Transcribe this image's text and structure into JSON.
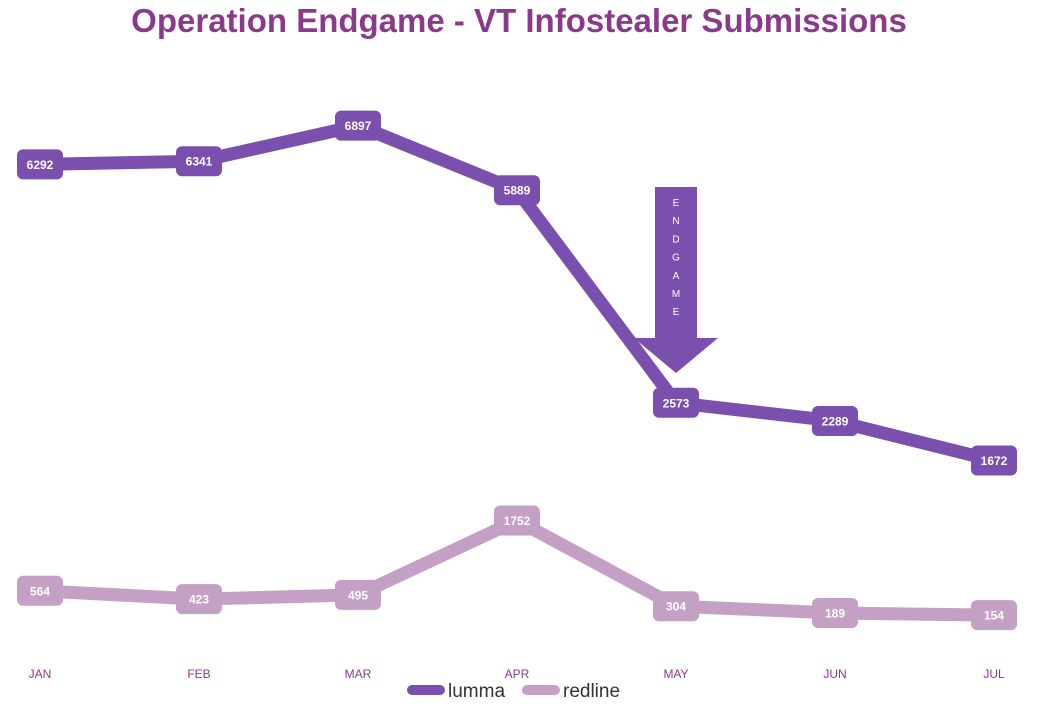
{
  "chart_data": {
    "type": "line",
    "title": "Operation Endgame - VT Infostealer Submissions",
    "categories": [
      "JAN",
      "FEB",
      "MAR",
      "APR",
      "MAY",
      "JUN",
      "JUL"
    ],
    "series": [
      {
        "name": "lumma",
        "color": "#7B4FAE",
        "values": [
          6292,
          6341,
          6897,
          5889,
          2573,
          2289,
          1672
        ]
      },
      {
        "name": "redline",
        "color": "#C4A0C4",
        "values": [
          564,
          423,
          495,
          1752,
          304,
          189,
          154
        ]
      }
    ],
    "annotation": {
      "text": "ENDGAME",
      "category": "MAY",
      "shape": "down-arrow",
      "color": "#7B4FAE"
    },
    "legend": {
      "placement": "bottom-center",
      "entries": [
        "lumma",
        "redline"
      ]
    },
    "grid": false,
    "y_axis_visible": false,
    "ylim": [
      0,
      7500
    ]
  }
}
